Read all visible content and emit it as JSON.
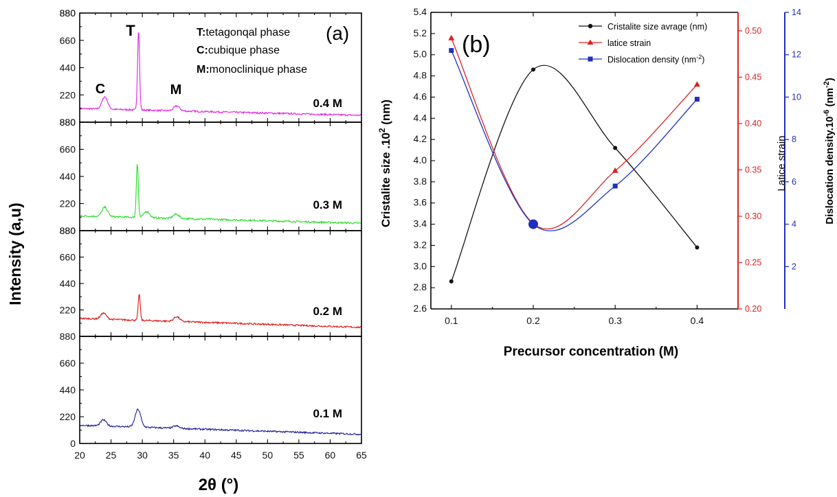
{
  "chart_data": [
    {
      "type": "line",
      "panel_label": "(a)",
      "ylabel": "Intensity  (a,u)",
      "xlabel": "2θ (°)",
      "xlim": [
        20,
        65
      ],
      "x_ticks": [
        "20",
        "25",
        "30",
        "35",
        "40",
        "45",
        "50",
        "55",
        "60",
        "65"
      ],
      "y_ticks_bottom": [
        "0",
        "220",
        "440",
        "660",
        "880"
      ],
      "y_ticks_stacked": [
        "220",
        "440",
        "660",
        "880"
      ],
      "annotations": {
        "peak_c": "C",
        "peak_t": "T",
        "peak_m": "M",
        "legend_t_key": "T:",
        "legend_t_text": "tetagonqal phase",
        "legend_c_key": "C:",
        "legend_c_text": "cubique phase",
        "legend_m_key": "M:",
        "legend_m_text": "monoclinique phase"
      },
      "series": [
        {
          "name": "0.4  M",
          "color": "#e020e0",
          "baseline": 110,
          "peaks": [
            {
              "x": 24.0,
              "y": 210
            },
            {
              "x": 29.4,
              "y": 760
            },
            {
              "x": 35.5,
              "y": 150
            }
          ]
        },
        {
          "name": "0.3  M",
          "color": "#22dd22",
          "baseline": 120,
          "peaks": [
            {
              "x": 24.0,
              "y": 195
            },
            {
              "x": 29.2,
              "y": 560
            },
            {
              "x": 30.7,
              "y": 170
            },
            {
              "x": 35.4,
              "y": 155
            }
          ]
        },
        {
          "name": "0.2  M",
          "color": "#dd1111",
          "baseline": 150,
          "peaks": [
            {
              "x": 23.8,
              "y": 200
            },
            {
              "x": 29.5,
              "y": 370
            },
            {
              "x": 35.5,
              "y": 190
            }
          ]
        },
        {
          "name": "0.1  M",
          "color": "#1a1a99",
          "baseline": 150,
          "peaks": [
            {
              "x": 23.8,
              "y": 200
            },
            {
              "x": 29.3,
              "y": 295
            },
            {
              "x": 35.4,
              "y": 170
            }
          ]
        }
      ]
    },
    {
      "type": "line",
      "panel_label": "(b)",
      "xlabel": "Precursor  concentration  (M)",
      "x": [
        0.1,
        0.2,
        0.3,
        0.4
      ],
      "xlim": [
        0.075,
        0.45
      ],
      "x_ticks": [
        "0.1",
        "0.2",
        "0.3",
        "0.4"
      ],
      "series": [
        {
          "name": "Cristalite size avrage (nm)",
          "color": "#111111",
          "marker": "star",
          "axis": "left",
          "values": [
            2.86,
            4.86,
            4.12,
            3.18
          ]
        },
        {
          "name": "latice strain",
          "color": "#dd2222",
          "marker": "triangle",
          "axis": "right1",
          "values": [
            0.492,
            0.292,
            0.349,
            0.442
          ]
        },
        {
          "name": "Dislocation density (nm",
          "name_sup": "-2",
          "name_tail": ")",
          "color": "#1f2fbf",
          "marker": "square",
          "axis": "right2",
          "values": [
            12.2,
            4.0,
            5.8,
            9.9
          ]
        }
      ],
      "axes": {
        "left": {
          "label_main": "Cristalite size .10",
          "label_sup": "2",
          "label_unit": "  (nm)",
          "ylim": [
            2.6,
            5.4
          ],
          "ticks": [
            "2.6",
            "2.8",
            "3.0",
            "3.2",
            "3.4",
            "3.6",
            "3.8",
            "4.0",
            "4.2",
            "4.4",
            "4.6",
            "4.8",
            "5.0",
            "5.2",
            "5.4"
          ],
          "color": "#111111"
        },
        "right1": {
          "label": "Latice strain",
          "ylim": [
            0.2,
            0.52
          ],
          "ticks": [
            "0.20",
            "0.25",
            "0.30",
            "0.35",
            "0.40",
            "0.45",
            "0.50"
          ],
          "color": "#dd2222"
        },
        "right2": {
          "label_main": "Dislocation density.10",
          "label_sup": "-6",
          "label_unit_open": "  (nm",
          "label_unit_sup": "-2",
          "label_unit_close": ")",
          "ylim": [
            0,
            14
          ],
          "ticks": [
            "2",
            "4",
            "6",
            "8",
            "10",
            "12",
            "14"
          ],
          "color": "#1f2fbf"
        }
      }
    }
  ]
}
